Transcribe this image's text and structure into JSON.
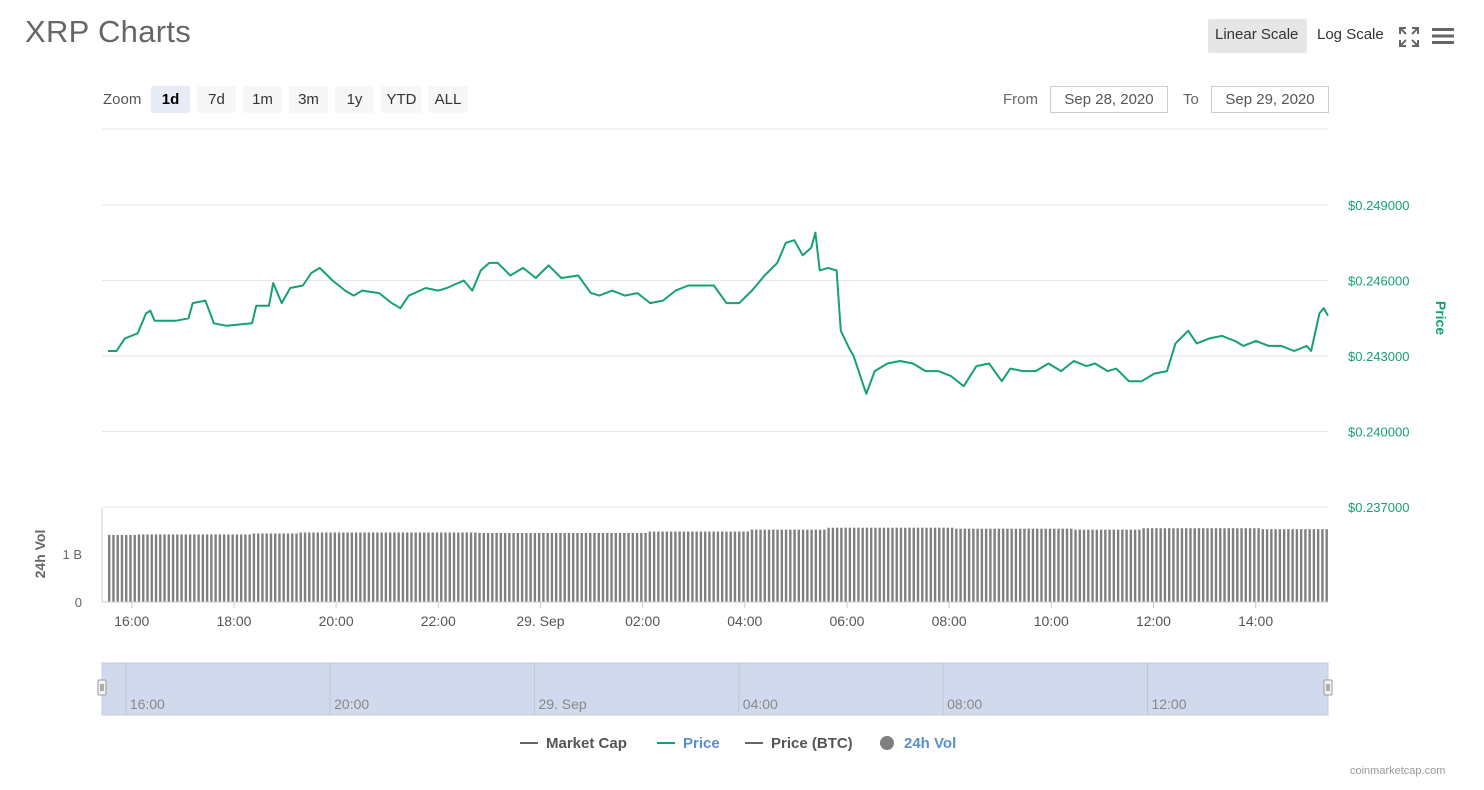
{
  "header": {
    "title": "XRP Charts",
    "linear_scale": "Linear Scale",
    "log_scale": "Log Scale",
    "fullscreen_icon": "fullscreen-icon",
    "menu_icon": "hamburger-menu-icon"
  },
  "zoom": {
    "label": "Zoom",
    "options": [
      "1d",
      "7d",
      "1m",
      "3m",
      "1y",
      "YTD",
      "ALL"
    ],
    "selected": "1d"
  },
  "range": {
    "from_label": "From",
    "from_value": "Sep 28, 2020",
    "to_label": "To",
    "to_value": "Sep 29, 2020"
  },
  "legend": {
    "items": [
      {
        "label": "Market Cap",
        "color": "#666666",
        "shape": "line"
      },
      {
        "label": "Price",
        "color": "#16a077",
        "shape": "line"
      },
      {
        "label": "Price (BTC)",
        "color": "#666666",
        "shape": "line"
      },
      {
        "label": "24h Vol",
        "color": "#7f7f7f",
        "shape": "dot"
      }
    ]
  },
  "credit": "coinmarketcap.com",
  "colors": {
    "price_line": "#16a077",
    "volume_bars": "#7f7f7f",
    "navigator_fill": "#d1d9ec"
  },
  "chart_data": {
    "type": "line",
    "x_range": [
      "2020-09-28 15:25",
      "2020-09-29 15:25"
    ],
    "x_tick_labels": [
      "16:00",
      "18:00",
      "20:00",
      "22:00",
      "29. Sep",
      "02:00",
      "04:00",
      "06:00",
      "08:00",
      "10:00",
      "12:00",
      "14:00"
    ],
    "price": {
      "axis_title": "Price",
      "tick_labels": [
        "$0.237000",
        "$0.240000",
        "$0.243000",
        "$0.246000",
        "$0.249000"
      ],
      "ylim": [
        0.237,
        0.249
      ],
      "series": [
        {
          "name": "Price",
          "points": [
            [
              "15:25",
              0.2432
            ],
            [
              "15:35",
              0.2432
            ],
            [
              "15:45",
              0.2437
            ],
            [
              "16:00",
              0.2439
            ],
            [
              "16:10",
              0.2447
            ],
            [
              "16:15",
              0.2448
            ],
            [
              "16:20",
              0.2444
            ],
            [
              "16:35",
              0.2444
            ],
            [
              "16:45",
              0.2444
            ],
            [
              "17:00",
              0.2445
            ],
            [
              "17:05",
              0.2451
            ],
            [
              "17:20",
              0.2452
            ],
            [
              "17:30",
              0.2443
            ],
            [
              "17:45",
              0.2442
            ],
            [
              "18:15",
              0.2443
            ],
            [
              "18:20",
              0.245
            ],
            [
              "18:35",
              0.245
            ],
            [
              "18:40",
              0.2459
            ],
            [
              "18:50",
              0.2451
            ],
            [
              "19:00",
              0.2457
            ],
            [
              "19:15",
              0.2458
            ],
            [
              "19:25",
              0.2463
            ],
            [
              "19:35",
              0.2465
            ],
            [
              "19:50",
              0.246
            ],
            [
              "20:05",
              0.2456
            ],
            [
              "20:15",
              0.2454
            ],
            [
              "20:25",
              0.2456
            ],
            [
              "20:45",
              0.2455
            ],
            [
              "21:00",
              0.2451
            ],
            [
              "21:10",
              0.2449
            ],
            [
              "21:20",
              0.2454
            ],
            [
              "21:40",
              0.2457
            ],
            [
              "21:55",
              0.2456
            ],
            [
              "22:05",
              0.2457
            ],
            [
              "22:25",
              0.246
            ],
            [
              "22:35",
              0.2456
            ],
            [
              "22:45",
              0.2464
            ],
            [
              "22:55",
              0.2467
            ],
            [
              "23:05",
              0.2467
            ],
            [
              "23:20",
              0.2462
            ],
            [
              "23:35",
              0.2465
            ],
            [
              "23:50",
              0.2461
            ],
            [
              "0:05",
              0.2466
            ],
            [
              "0:20",
              0.2461
            ],
            [
              "0:40",
              0.2462
            ],
            [
              "0:55",
              0.2455
            ],
            [
              "1:05",
              0.2454
            ],
            [
              "1:20",
              0.2456
            ],
            [
              "1:35",
              0.2454
            ],
            [
              "1:50",
              0.2455
            ],
            [
              "2:05",
              0.2451
            ],
            [
              "2:20",
              0.2452
            ],
            [
              "2:35",
              0.2456
            ],
            [
              "2:50",
              0.2458
            ],
            [
              "3:05",
              0.2458
            ],
            [
              "3:20",
              0.2458
            ],
            [
              "3:35",
              0.2451
            ],
            [
              "3:50",
              0.2451
            ],
            [
              "4:05",
              0.2456
            ],
            [
              "4:20",
              0.2462
            ],
            [
              "4:35",
              0.2467
            ],
            [
              "4:45",
              0.2475
            ],
            [
              "4:55",
              0.2476
            ],
            [
              "5:05",
              0.247
            ],
            [
              "5:15",
              0.2473
            ],
            [
              "5:20",
              0.2479
            ],
            [
              "5:25",
              0.2464
            ],
            [
              "5:35",
              0.2465
            ],
            [
              "5:45",
              0.2464
            ],
            [
              "5:50",
              0.244
            ],
            [
              "6:00",
              0.2433
            ],
            [
              "6:05",
              0.243
            ],
            [
              "6:15",
              0.242
            ],
            [
              "6:20",
              0.2415
            ],
            [
              "6:30",
              0.2424
            ],
            [
              "6:45",
              0.2427
            ],
            [
              "7:00",
              0.2428
            ],
            [
              "7:15",
              0.2427
            ],
            [
              "7:30",
              0.2424
            ],
            [
              "7:45",
              0.2424
            ],
            [
              "8:00",
              0.2422
            ],
            [
              "8:15",
              0.2418
            ],
            [
              "8:30",
              0.2426
            ],
            [
              "8:45",
              0.2427
            ],
            [
              "9:00",
              0.242
            ],
            [
              "9:10",
              0.2425
            ],
            [
              "9:25",
              0.2424
            ],
            [
              "9:40",
              0.2424
            ],
            [
              "9:55",
              0.2427
            ],
            [
              "10:10",
              0.2424
            ],
            [
              "10:25",
              0.2428
            ],
            [
              "10:40",
              0.2426
            ],
            [
              "10:50",
              0.2427
            ],
            [
              "11:05",
              0.2424
            ],
            [
              "11:15",
              0.2425
            ],
            [
              "11:30",
              0.242
            ],
            [
              "11:45",
              0.242
            ],
            [
              "12:00",
              0.2423
            ],
            [
              "12:15",
              0.2424
            ],
            [
              "12:25",
              0.2435
            ],
            [
              "12:40",
              0.244
            ],
            [
              "12:50",
              0.2435
            ],
            [
              "13:05",
              0.2437
            ],
            [
              "13:20",
              0.2438
            ],
            [
              "13:35",
              0.2436
            ],
            [
              "13:45",
              0.2434
            ],
            [
              "14:00",
              0.2436
            ],
            [
              "14:15",
              0.2434
            ],
            [
              "14:30",
              0.2434
            ],
            [
              "14:45",
              0.2432
            ],
            [
              "15:00",
              0.2434
            ],
            [
              "15:05",
              0.2432
            ],
            [
              "15:15",
              0.2447
            ],
            [
              "15:20",
              0.2449
            ],
            [
              "15:25",
              0.2446
            ]
          ]
        }
      ]
    },
    "volume": {
      "axis_title": "24h Vol",
      "tick_labels": [
        "0",
        "1 B"
      ],
      "ylim": [
        0,
        1.92
      ],
      "unit": "B",
      "series": [
        {
          "name": "24h Vol",
          "segments": [
            {
              "from": "15:25",
              "to": "16:00",
              "value": 1.4
            },
            {
              "from": "16:00",
              "to": "18:15",
              "value": 1.41
            },
            {
              "from": "18:15",
              "to": "19:10",
              "value": 1.43
            },
            {
              "from": "19:10",
              "to": "22:40",
              "value": 1.45
            },
            {
              "from": "22:40",
              "to": "2:00",
              "value": 1.44
            },
            {
              "from": "2:00",
              "to": "4:00",
              "value": 1.47
            },
            {
              "from": "4:00",
              "to": "5:30",
              "value": 1.51
            },
            {
              "from": "5:30",
              "to": "8:00",
              "value": 1.55
            },
            {
              "from": "8:00",
              "to": "10:20",
              "value": 1.53
            },
            {
              "from": "10:20",
              "to": "11:40",
              "value": 1.51
            },
            {
              "from": "11:40",
              "to": "14:00",
              "value": 1.54
            },
            {
              "from": "14:00",
              "to": "15:25",
              "value": 1.52
            }
          ]
        }
      ]
    },
    "navigator": {
      "tick_labels": [
        "16:00",
        "20:00",
        "29. Sep",
        "04:00",
        "08:00",
        "12:00"
      ]
    }
  }
}
